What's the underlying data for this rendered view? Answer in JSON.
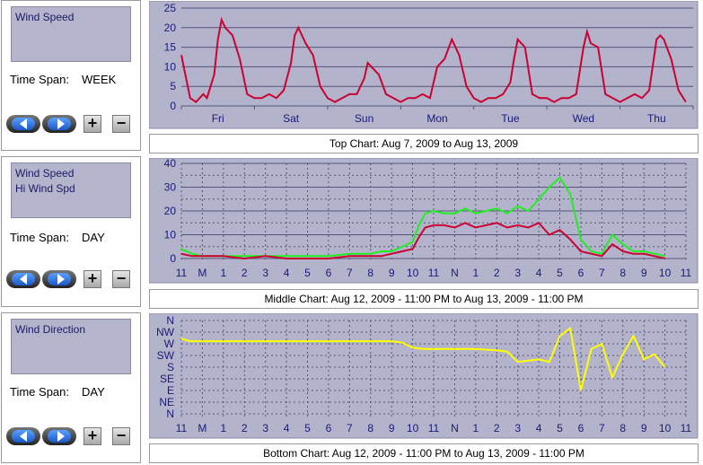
{
  "panels": [
    {
      "series": [
        "Wind Speed"
      ],
      "time_span_label": "Time Span:",
      "time_span": "WEEK"
    },
    {
      "series": [
        "Wind Speed",
        "Hi Wind Spd"
      ],
      "time_span_label": "Time Span:",
      "time_span": "DAY"
    },
    {
      "series": [
        "Wind Direction"
      ],
      "time_span_label": "Time Span:",
      "time_span": "DAY"
    }
  ],
  "controls": {
    "zoom_in": "+",
    "zoom_out": "−"
  },
  "captions": {
    "top": "Top Chart:  Aug 7, 2009  to  Aug 13, 2009",
    "middle": "Middle Chart:  Aug 12, 2009 - 11:00 PM  to  Aug 13, 2009 - 11:00 PM",
    "bottom": "Bottom Chart:  Aug 12, 2009 - 11:00 PM  to  Aug 13, 2009 - 11:00 PM"
  },
  "colors": {
    "plot_bg": "#b3b3cc",
    "grid": "#55557a",
    "axis_text": "#1a1a77",
    "wind_speed": "#cc0033",
    "hi_wind": "#22ee22",
    "direction": "#ffff00"
  },
  "chart_data": [
    {
      "type": "line",
      "ylim": [
        0,
        25
      ],
      "yticks": [
        0,
        5,
        10,
        15,
        20,
        25
      ],
      "categories": [
        "Fri",
        "Sat",
        "Sun",
        "Mon",
        "Tue",
        "Wed",
        "Thu"
      ],
      "series": [
        {
          "name": "Wind Speed",
          "x": [
            0,
            0.12,
            0.2,
            0.3,
            0.35,
            0.45,
            0.5,
            0.55,
            0.6,
            0.7,
            0.8,
            0.9,
            1.0,
            1.1,
            1.2,
            1.3,
            1.4,
            1.5,
            1.55,
            1.6,
            1.7,
            1.8,
            1.9,
            2.0,
            2.1,
            2.2,
            2.3,
            2.4,
            2.5,
            2.55,
            2.6,
            2.7,
            2.8,
            2.9,
            3.0,
            3.1,
            3.2,
            3.3,
            3.4,
            3.5,
            3.6,
            3.7,
            3.8,
            3.9,
            4.0,
            4.1,
            4.2,
            4.3,
            4.4,
            4.5,
            4.55,
            4.6,
            4.7,
            4.8,
            4.9,
            5.0,
            5.1,
            5.2,
            5.3,
            5.4,
            5.5,
            5.55,
            5.6,
            5.7,
            5.8,
            5.9,
            6.0,
            6.1,
            6.2,
            6.3,
            6.4,
            6.5,
            6.55,
            6.6,
            6.7,
            6.8,
            6.9
          ],
          "values": [
            13,
            2,
            1,
            3,
            2,
            8,
            17,
            22,
            20,
            18,
            12,
            3,
            2,
            2,
            3,
            2,
            4,
            11,
            18,
            20,
            16,
            13,
            5,
            2,
            1,
            2,
            3,
            3,
            7,
            11,
            10,
            8,
            3,
            2,
            1,
            2,
            2,
            3,
            2,
            10,
            12,
            17,
            13,
            5,
            2,
            1,
            2,
            2,
            3,
            6,
            12,
            17,
            15,
            3,
            2,
            2,
            1,
            2,
            2,
            3,
            15,
            19,
            16,
            15,
            3,
            2,
            1,
            2,
            3,
            2,
            4,
            17,
            18,
            17,
            12,
            4,
            1
          ]
        }
      ]
    },
    {
      "type": "line",
      "ylim": [
        0,
        40
      ],
      "yticks": [
        0,
        10,
        20,
        30,
        40
      ],
      "categories": [
        "11",
        "M",
        "1",
        "2",
        "3",
        "4",
        "5",
        "6",
        "7",
        "8",
        "9",
        "10",
        "11",
        "N",
        "1",
        "2",
        "3",
        "4",
        "5",
        "6",
        "7",
        "8",
        "9",
        "10",
        "11"
      ],
      "series": [
        {
          "name": "Wind Speed",
          "x": [
            0,
            0.5,
            1,
            2,
            3,
            4,
            5,
            6,
            7,
            8,
            9,
            9.5,
            10,
            10.5,
            11,
            11.3,
            11.6,
            12,
            12.5,
            13,
            13.5,
            14,
            14.5,
            15,
            15.5,
            16,
            16.5,
            17,
            17.5,
            18,
            18.5,
            19,
            19.5,
            20,
            20.5,
            21,
            21.5,
            22,
            22.5,
            23
          ],
          "values": [
            2,
            1,
            1,
            1,
            0,
            1,
            0,
            0,
            0,
            1,
            1,
            1,
            2,
            3,
            4,
            9,
            13,
            14,
            14,
            13,
            15,
            13,
            14,
            15,
            13,
            14,
            13,
            15,
            10,
            12,
            8,
            3,
            2,
            1,
            6,
            3,
            2,
            2,
            1,
            0
          ]
        },
        {
          "name": "Hi Wind Spd",
          "x": [
            0,
            0.5,
            1,
            2,
            3,
            4,
            5,
            6,
            7,
            8,
            9,
            9.5,
            10,
            10.5,
            11,
            11.3,
            11.6,
            12,
            12.5,
            13,
            13.5,
            14,
            14.5,
            15,
            15.5,
            16,
            16.5,
            17,
            17.5,
            18,
            18.5,
            19,
            19.5,
            20,
            20.5,
            21,
            21.5,
            22,
            22.5,
            23
          ],
          "values": [
            4,
            2,
            1,
            1,
            1,
            1,
            1,
            1,
            1,
            2,
            2,
            3,
            3,
            5,
            7,
            14,
            19,
            20,
            19,
            19,
            21,
            19,
            20,
            21,
            19,
            22,
            20,
            25,
            30,
            34,
            27,
            8,
            3,
            2,
            10,
            6,
            3,
            3,
            2,
            1
          ]
        }
      ]
    },
    {
      "type": "line",
      "yticks": [
        "N",
        "NE",
        "E",
        "SE",
        "S",
        "SW",
        "W",
        "NW",
        "N"
      ],
      "categories": [
        "11",
        "M",
        "1",
        "2",
        "3",
        "4",
        "5",
        "6",
        "7",
        "8",
        "9",
        "10",
        "11",
        "N",
        "1",
        "2",
        "3",
        "4",
        "5",
        "6",
        "7",
        "8",
        "9",
        "10",
        "11"
      ],
      "series": [
        {
          "name": "Wind Direction",
          "x": [
            0,
            0.4,
            1,
            2,
            3,
            4,
            5,
            6,
            7,
            8,
            9,
            10,
            10.5,
            11,
            11.5,
            12,
            13,
            14,
            15,
            15.5,
            16,
            16.5,
            17,
            17.5,
            18,
            18.5,
            19,
            19.5,
            20,
            20.5,
            21,
            21.5,
            22,
            22.5,
            23
          ],
          "values": [
            290,
            280,
            280,
            280,
            280,
            280,
            280,
            280,
            280,
            280,
            280,
            280,
            275,
            255,
            250,
            250,
            250,
            250,
            245,
            240,
            200,
            205,
            210,
            200,
            300,
            330,
            90,
            250,
            270,
            140,
            230,
            300,
            210,
            230,
            180
          ]
        }
      ]
    }
  ]
}
